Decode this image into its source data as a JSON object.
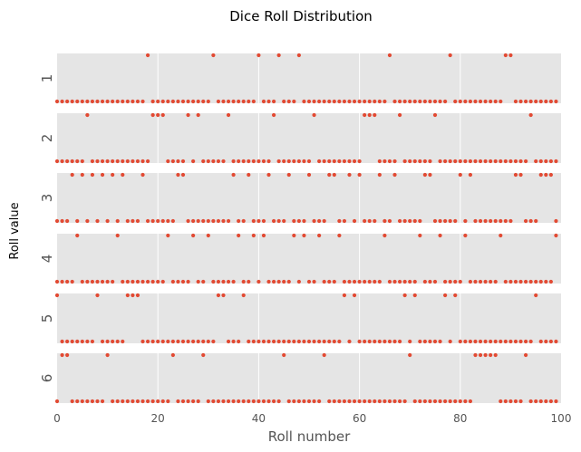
{
  "chart_data": {
    "type": "scatter",
    "title": "Dice Roll Distribution",
    "xlabel": "Roll number",
    "ylabel": "Roll value",
    "xlim": [
      0,
      100
    ],
    "xticks": [
      "0",
      "20",
      "40",
      "60",
      "80",
      "100"
    ],
    "grid": true,
    "panels": [
      "1",
      "2",
      "3",
      "4",
      "5",
      "6"
    ],
    "point_color": "#E24A33",
    "panel_background": "#E5E5E5",
    "x": [
      0,
      1,
      2,
      3,
      4,
      5,
      6,
      7,
      8,
      9,
      10,
      11,
      12,
      13,
      14,
      15,
      16,
      17,
      18,
      19,
      20,
      21,
      22,
      23,
      24,
      25,
      26,
      27,
      28,
      29,
      30,
      31,
      32,
      33,
      34,
      35,
      36,
      37,
      38,
      39,
      40,
      41,
      42,
      43,
      44,
      45,
      46,
      47,
      48,
      49,
      50,
      51,
      52,
      53,
      54,
      55,
      56,
      57,
      58,
      59,
      60,
      61,
      62,
      63,
      64,
      65,
      66,
      67,
      68,
      69,
      70,
      71,
      72,
      73,
      74,
      75,
      76,
      77,
      78,
      79,
      80,
      81,
      82,
      83,
      84,
      85,
      86,
      87,
      88,
      89,
      90,
      91,
      92,
      93,
      94,
      95,
      96,
      97,
      98,
      99
    ],
    "values": [
      5,
      6,
      6,
      3,
      4,
      3,
      2,
      3,
      5,
      3,
      6,
      3,
      4,
      3,
      5,
      5,
      5,
      3,
      1,
      2,
      2,
      2,
      4,
      6,
      3,
      3,
      2,
      4,
      2,
      6,
      4,
      1,
      5,
      5,
      2,
      3,
      4,
      5,
      3,
      4,
      1,
      4,
      3,
      2,
      1,
      6,
      3,
      4,
      1,
      4,
      3,
      2,
      4,
      6,
      3,
      3,
      4,
      5,
      3,
      5,
      3,
      2,
      2,
      2,
      3,
      4,
      1,
      3,
      2,
      5,
      6,
      5,
      4,
      3,
      3,
      2,
      4,
      5,
      1,
      5,
      3,
      4,
      3,
      6,
      6,
      6,
      6,
      6,
      4,
      1,
      1,
      3,
      3,
      6,
      2,
      5,
      3,
      3,
      3,
      4
    ]
  }
}
